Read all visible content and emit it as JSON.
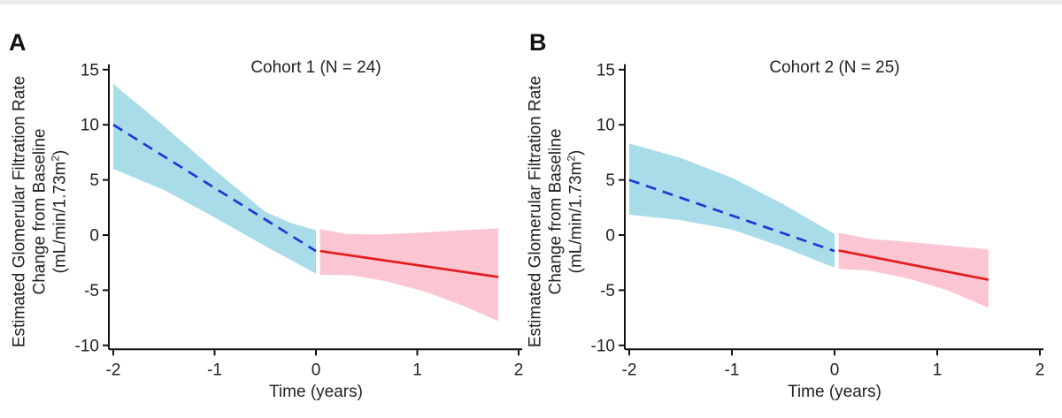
{
  "figure": {
    "top_strip_color": "#ededed",
    "background": "#ffffff",
    "axis_color": "#111111",
    "text_color": "#222222",
    "panels": [
      {
        "letter": "A"
      },
      {
        "letter": "B"
      }
    ],
    "y_axis_label": {
      "line1": "Estimated Glomerular Filtration Rate",
      "line2": "Change from Baseline",
      "line3_pre": "(mL/min/1.73m",
      "line3_sup": "2",
      "line3_post": ")"
    }
  },
  "chart_data": [
    {
      "type": "line",
      "panel": "A",
      "title": "Cohort 1 (N = 24)",
      "xlabel": "Time (years)",
      "ylabel": "Estimated Glomerular Filtration Rate Change from Baseline (mL/min/1.73m2)",
      "xlim": [
        -2,
        2
      ],
      "ylim": [
        -10,
        15
      ],
      "x_ticks": [
        -2,
        -1,
        0,
        1,
        2
      ],
      "y_ticks": [
        15,
        10,
        5,
        0,
        -5,
        -10
      ],
      "grid": false,
      "legend": "none",
      "series": [
        {
          "name": "pre-baseline-fit",
          "style": "dashed",
          "color": "#1b38d4",
          "points": [
            [
              -2,
              10.0
            ],
            [
              0,
              -1.45
            ]
          ]
        },
        {
          "name": "post-baseline-fit",
          "style": "solid",
          "color": "#e41b1e",
          "points": [
            [
              0.04,
              -1.45
            ],
            [
              1.8,
              -3.8
            ]
          ]
        }
      ],
      "bands": [
        {
          "name": "pre-baseline-ci",
          "color": "#a9dce9",
          "upper": [
            [
              -2,
              13.7
            ],
            [
              -1.5,
              9.9
            ],
            [
              -1,
              5.9
            ],
            [
              -0.5,
              2.1
            ],
            [
              -0.25,
              1.1
            ],
            [
              0,
              0.45
            ]
          ],
          "lower": [
            [
              -2,
              6.0
            ],
            [
              -1.5,
              4.1
            ],
            [
              -1,
              1.6
            ],
            [
              -0.5,
              -1.0
            ],
            [
              0,
              -3.5
            ]
          ]
        },
        {
          "name": "post-baseline-ci",
          "color": "#fbc6d1",
          "upper": [
            [
              0.04,
              0.55
            ],
            [
              0.3,
              0.1
            ],
            [
              0.6,
              0.05
            ],
            [
              1.0,
              0.2
            ],
            [
              1.4,
              0.42
            ],
            [
              1.8,
              0.6
            ]
          ],
          "lower": [
            [
              0.04,
              -3.6
            ],
            [
              0.35,
              -3.65
            ],
            [
              0.7,
              -4.2
            ],
            [
              1.1,
              -5.2
            ],
            [
              1.45,
              -6.4
            ],
            [
              1.8,
              -7.8
            ]
          ]
        }
      ]
    },
    {
      "type": "line",
      "panel": "B",
      "title": "Cohort 2 (N = 25)",
      "xlabel": "Time (years)",
      "ylabel": "Estimated Glomerular Filtration Rate Change from Baseline (mL/min/1.73m2)",
      "xlim": [
        -2,
        2
      ],
      "ylim": [
        -10,
        15
      ],
      "x_ticks": [
        -2,
        -1,
        0,
        1,
        2
      ],
      "y_ticks": [
        15,
        10,
        5,
        0,
        -5,
        -10
      ],
      "grid": false,
      "legend": "none",
      "series": [
        {
          "name": "pre-baseline-fit",
          "style": "dashed",
          "color": "#1b38d4",
          "points": [
            [
              -2,
              5.0
            ],
            [
              0,
              -1.45
            ]
          ]
        },
        {
          "name": "post-baseline-fit",
          "style": "solid",
          "color": "#e41b1e",
          "points": [
            [
              0.04,
              -1.4
            ],
            [
              1.5,
              -4.05
            ]
          ]
        }
      ],
      "bands": [
        {
          "name": "pre-baseline-ci",
          "color": "#a9dce9",
          "upper": [
            [
              -2,
              8.3
            ],
            [
              -1.5,
              7.0
            ],
            [
              -1,
              5.2
            ],
            [
              -0.5,
              2.8
            ],
            [
              0,
              0.1
            ]
          ],
          "lower": [
            [
              -2,
              1.85
            ],
            [
              -1.5,
              1.35
            ],
            [
              -1,
              0.5
            ],
            [
              -0.5,
              -1.1
            ],
            [
              0,
              -2.95
            ]
          ]
        },
        {
          "name": "post-baseline-ci",
          "color": "#fbc6d1",
          "upper": [
            [
              0.04,
              0.2
            ],
            [
              0.35,
              -0.35
            ],
            [
              0.7,
              -0.6
            ],
            [
              1.1,
              -0.95
            ],
            [
              1.5,
              -1.3
            ]
          ],
          "lower": [
            [
              0.04,
              -3.05
            ],
            [
              0.35,
              -3.25
            ],
            [
              0.7,
              -3.9
            ],
            [
              1.1,
              -5.0
            ],
            [
              1.5,
              -6.6
            ]
          ]
        }
      ]
    }
  ]
}
